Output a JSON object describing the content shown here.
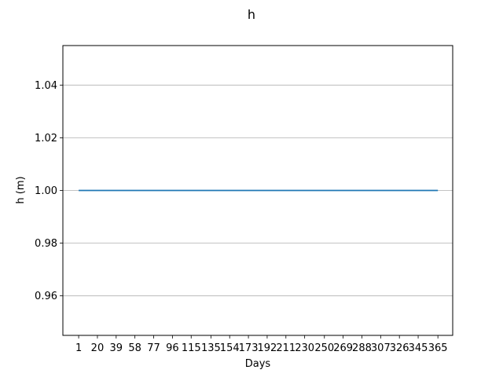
{
  "chart_data": {
    "type": "line",
    "title": "h",
    "xlabel": "Days",
    "ylabel": "h (m)",
    "x_ticks": [
      1,
      20,
      39,
      58,
      77,
      96,
      115,
      135,
      154,
      173,
      192,
      211,
      230,
      250,
      269,
      288,
      307,
      326,
      345,
      365
    ],
    "xlim": [
      -15,
      380
    ],
    "ylim": [
      0.945,
      1.055
    ],
    "y_ticks": [
      0.96,
      0.98,
      1.0,
      1.02,
      1.04
    ],
    "y_tick_labels": [
      "0.96",
      "0.98",
      "1.00",
      "1.02",
      "1.04"
    ],
    "grid": "y",
    "series": [
      {
        "color": "#1f77b4",
        "x": [
          1,
          365
        ],
        "y": [
          1.0,
          1.0
        ]
      }
    ]
  }
}
